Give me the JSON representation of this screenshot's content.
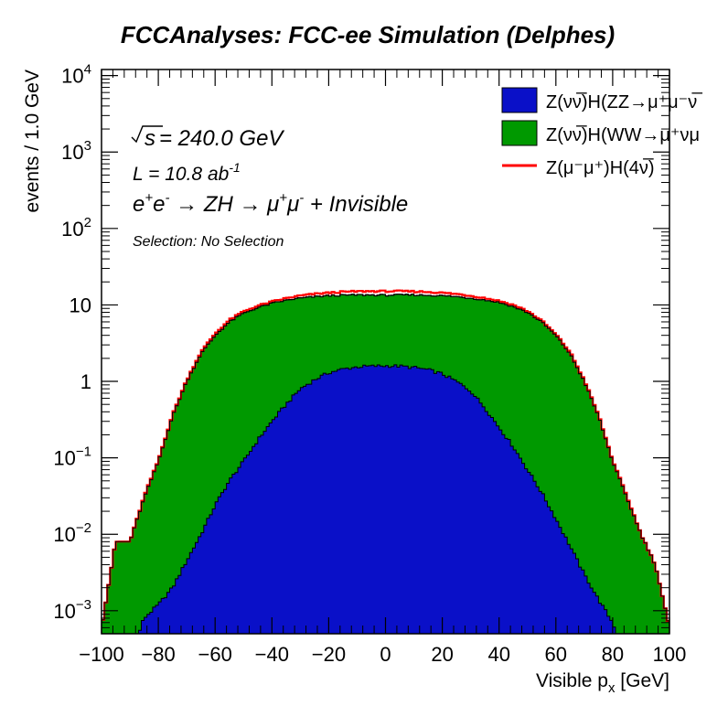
{
  "chart_data": {
    "type": "histogram",
    "title": "FCCAnalyses: FCC-ee Simulation (Delphes)",
    "xlabel_base": "Visible p",
    "xlabel_sub": "x",
    "xlabel_unit": " [GeV]",
    "ylabel": "events / 1.0 GeV",
    "xlim": [
      -100,
      100
    ],
    "ylim": [
      0.0005,
      12000
    ],
    "log_y": true,
    "x_ticks": [
      -100,
      -80,
      -60,
      -40,
      -20,
      0,
      20,
      40,
      60,
      80,
      100
    ],
    "x_tick_labels": [
      "−100",
      "−80",
      "−60",
      "−40",
      "−20",
      "0",
      "20",
      "40",
      "60",
      "80",
      "100"
    ],
    "y_ticks": [
      {
        "value": 0.001,
        "base": "10",
        "exp": "−3"
      },
      {
        "value": 0.01,
        "base": "10",
        "exp": "−2"
      },
      {
        "value": 0.1,
        "base": "10",
        "exp": "−1"
      },
      {
        "value": 1,
        "base": "1",
        "exp": ""
      },
      {
        "value": 10,
        "base": "10",
        "exp": ""
      },
      {
        "value": 100,
        "base": "10",
        "exp": "2"
      },
      {
        "value": 1000,
        "base": "10",
        "exp": "3"
      },
      {
        "value": 10000,
        "base": "10",
        "exp": "4"
      }
    ],
    "bin_width": 1.0,
    "stack_note": "green drawn stacked on top of blue; red line is the total",
    "x_profile": [
      -100,
      -95,
      -90,
      -85,
      -80,
      -75,
      -70,
      -65,
      -60,
      -55,
      -50,
      -45,
      -40,
      -35,
      -30,
      -25,
      -20,
      -15,
      -10,
      -5,
      0,
      5,
      10,
      15,
      20,
      25,
      30,
      35,
      40,
      45,
      50,
      55,
      60,
      65,
      70,
      75,
      80,
      85,
      90,
      95,
      100
    ],
    "series": [
      {
        "name": "Z(νν̅)H(ZZ→μ⁺μ⁻ν̅ν)",
        "legend_label": "Z(νν̅)H(ZZ→μ⁺μ⁻ν̅",
        "style": "fill",
        "color": "#0a10c8",
        "values": [
          0,
          0,
          0,
          0.0008,
          0.0012,
          0.002,
          0.0045,
          0.01,
          0.024,
          0.05,
          0.09,
          0.17,
          0.3,
          0.5,
          0.8,
          1.05,
          1.3,
          1.45,
          1.55,
          1.58,
          1.6,
          1.58,
          1.52,
          1.42,
          1.25,
          1.0,
          0.75,
          0.45,
          0.25,
          0.14,
          0.07,
          0.035,
          0.016,
          0.007,
          0.003,
          0.0014,
          0.0007,
          0,
          0,
          0,
          0
        ]
      },
      {
        "name": "Z(νν̅)H(WW→μ⁺νμ⁻ν̅)",
        "legend_label": "Z(νν̅)H(WW→μ⁺νμ",
        "style": "fill",
        "color": "#009900",
        "values": [
          0.0006,
          0.008,
          0.008,
          0.03,
          0.09,
          0.35,
          1.0,
          2.3,
          4.0,
          6.0,
          7.8,
          9.2,
          10.5,
          11.5,
          12.3,
          12.8,
          13.2,
          13.4,
          13.5,
          13.5,
          13.4,
          13.5,
          13.5,
          13.4,
          13.2,
          12.8,
          12.3,
          11.6,
          10.8,
          9.5,
          8.0,
          6.0,
          4.0,
          2.3,
          1.0,
          0.35,
          0.09,
          0.03,
          0.01,
          0.004,
          0.0006
        ]
      },
      {
        "name": "Z(μ⁻μ⁺)H(4ν̅)",
        "legend_label": "Z(μ⁻μ⁺)H(4ν̅)",
        "style": "line",
        "color": "#ff0000",
        "values": [
          0.0006,
          0.008,
          0.008,
          0.031,
          0.092,
          0.36,
          1.03,
          2.4,
          4.2,
          6.3,
          8.2,
          9.7,
          11.0,
          12.2,
          13.2,
          13.9,
          14.4,
          14.8,
          15.0,
          15.1,
          15.1,
          15.1,
          15.0,
          14.8,
          14.4,
          13.9,
          13.2,
          12.3,
          11.3,
          10.0,
          8.3,
          6.2,
          4.1,
          2.4,
          1.03,
          0.36,
          0.092,
          0.031,
          0.01,
          0.004,
          0.0006
        ]
      }
    ]
  },
  "annotations": {
    "sqrt_s": {
      "prefix": "s",
      "rest": " = 240.0 GeV"
    },
    "lumi": {
      "base": "L = 10.8 ab",
      "exp": "-1"
    },
    "process": {
      "p1": "e",
      "s1": "+",
      "p2": "e",
      "s2": "-",
      "p3": " → ZH → μ",
      "s3": "+",
      "p4": "μ",
      "s4": "-",
      "p5": " + Invisible"
    },
    "selection": "Selection: No Selection"
  },
  "legend": {
    "placement": "top-right"
  }
}
